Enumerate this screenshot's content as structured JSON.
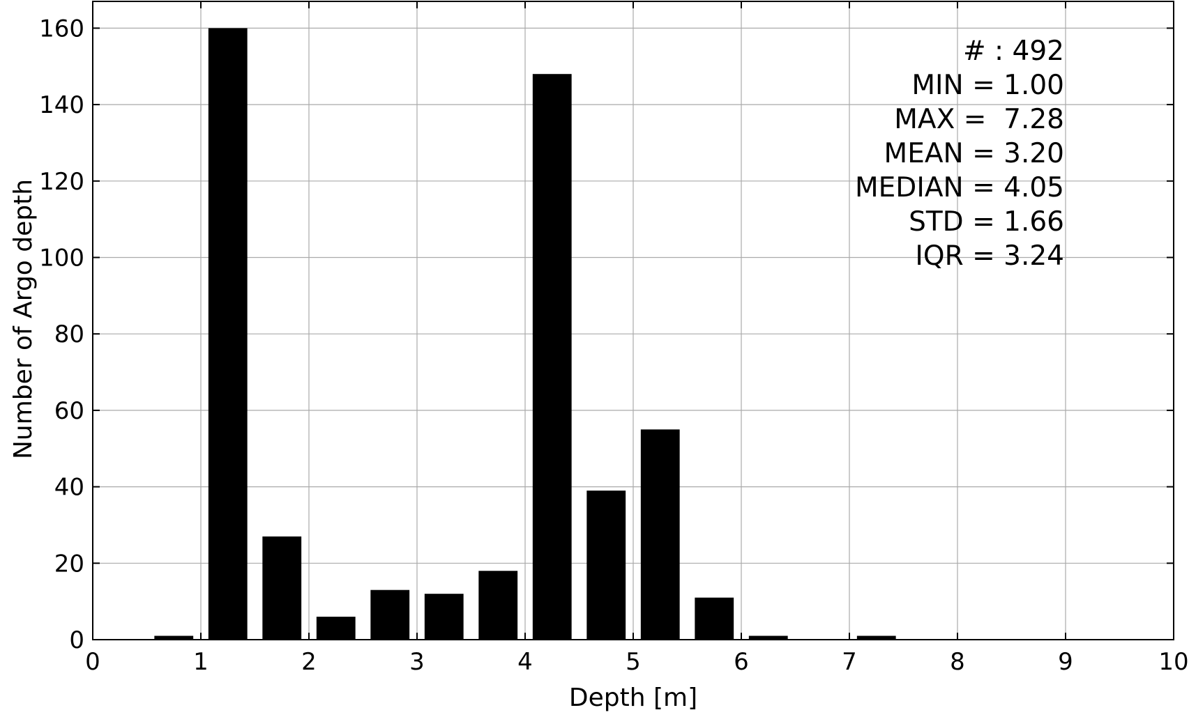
{
  "chart_data": {
    "type": "bar",
    "title": "",
    "xlabel": "Depth [m]",
    "ylabel": "Number of Argo depth",
    "xlim": [
      0,
      10
    ],
    "ylim": [
      0,
      167
    ],
    "x_ticks": [
      "0",
      "1",
      "2",
      "3",
      "4",
      "5",
      "6",
      "7",
      "8",
      "9",
      "10"
    ],
    "y_ticks": [
      "0",
      "20",
      "40",
      "60",
      "80",
      "100",
      "120",
      "140",
      "160"
    ],
    "grid": true,
    "bar_color": "#000000",
    "bin_width": 0.5,
    "bars": [
      {
        "x0": 0.5,
        "x1": 1.0,
        "value": 1
      },
      {
        "x0": 1.0,
        "x1": 1.5,
        "value": 160
      },
      {
        "x0": 1.5,
        "x1": 2.0,
        "value": 27
      },
      {
        "x0": 2.0,
        "x1": 2.5,
        "value": 6
      },
      {
        "x0": 2.5,
        "x1": 3.0,
        "value": 13
      },
      {
        "x0": 3.0,
        "x1": 3.5,
        "value": 12
      },
      {
        "x0": 3.5,
        "x1": 4.0,
        "value": 18
      },
      {
        "x0": 4.0,
        "x1": 4.5,
        "value": 148
      },
      {
        "x0": 4.5,
        "x1": 5.0,
        "value": 39
      },
      {
        "x0": 5.0,
        "x1": 5.5,
        "value": 55
      },
      {
        "x0": 5.5,
        "x1": 6.0,
        "value": 11
      },
      {
        "x0": 6.0,
        "x1": 6.5,
        "value": 1
      },
      {
        "x0": 7.0,
        "x1": 7.5,
        "value": 1
      }
    ],
    "stats_lines": [
      "# : 492",
      "MIN = 1.00",
      "MAX =  7.28",
      "MEAN = 3.20",
      "MEDIAN = 4.05",
      "STD = 1.66",
      "IQR = 3.24"
    ]
  }
}
